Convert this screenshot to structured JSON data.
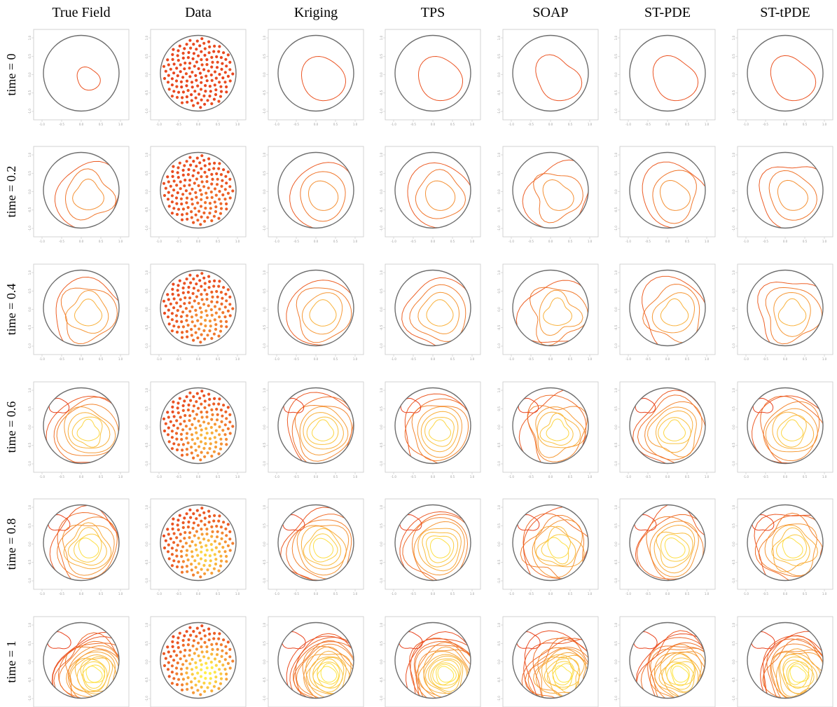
{
  "chart_data": {
    "type": "contour-grid",
    "columns": [
      "True Field",
      "Data",
      "Kriging",
      "TPS",
      "SOAP",
      "ST-PDE",
      "ST-tPDE"
    ],
    "rows": [
      "time = 0",
      "time = 0.2",
      "time = 0.4",
      "time = 0.6",
      "time = 0.8",
      "time = 1"
    ],
    "time_values": [
      0,
      0.2,
      0.4,
      0.6,
      0.8,
      1
    ],
    "domain": "unit disk",
    "x_ticks": [
      "-1.0",
      "-0.5",
      "0.0",
      "0.5",
      "1.0"
    ],
    "y_ticks": [
      "-1.0",
      "-0.5",
      "0.0",
      "0.5",
      "1.0"
    ],
    "xlim": [
      -1.1,
      1.1
    ],
    "ylim": [
      -1.1,
      1.1
    ],
    "contour_levels_per_time": [
      1,
      3,
      4,
      7,
      8,
      16
    ],
    "data_points_per_panel": 150,
    "colors": {
      "domain_border": "#6e6e6e",
      "frame": "#c8c8c8",
      "low": "#e8431e",
      "mid": "#f7a23a",
      "high": "#fff04a"
    }
  }
}
